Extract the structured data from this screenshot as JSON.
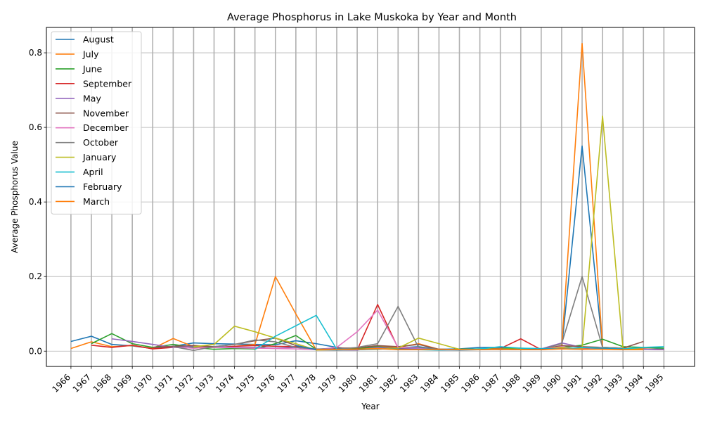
{
  "chart_data": {
    "type": "line",
    "title": "Average Phosphorus in Lake Muskoka by Year and Month",
    "xlabel": "Year",
    "ylabel": "Average Phosphorus Value",
    "xlim": [
      1964.8,
      1996.5
    ],
    "ylim": [
      -0.041,
      0.868
    ],
    "yticks": [
      0.0,
      0.2,
      0.4,
      0.6,
      0.8
    ],
    "xticks": [
      1966,
      1967,
      1968,
      1969,
      1970,
      1971,
      1972,
      1973,
      1974,
      1975,
      1976,
      1977,
      1978,
      1979,
      1980,
      1981,
      1982,
      1983,
      1984,
      1985,
      1986,
      1987,
      1988,
      1989,
      1990,
      1991,
      1992,
      1993,
      1994,
      1995
    ],
    "grid": true,
    "legend_position": "upper-left",
    "series": [
      {
        "name": "August",
        "color": "#1f77b4",
        "x": [
          1966,
          1967,
          1968,
          1969,
          1970,
          1971,
          1972,
          1973,
          1974,
          1975,
          1976,
          1977,
          1978,
          1979,
          1980,
          1981,
          1982,
          1983,
          1984,
          1985,
          1986,
          1987,
          1988,
          1989,
          1990,
          1991,
          1992,
          1993,
          1994,
          1995
        ],
        "y": [
          0.026,
          0.04,
          0.018,
          0.014,
          0.007,
          0.013,
          0.022,
          0.02,
          0.019,
          0.018,
          0.017,
          0.028,
          0.02,
          0.01,
          0.004,
          0.01,
          0.009,
          0.012,
          0.005,
          0.006,
          0.01,
          0.01,
          0.006,
          0.006,
          0.008,
          0.55,
          0.01,
          0.008,
          0.006,
          0.005
        ]
      },
      {
        "name": "July",
        "color": "#ff7f0e",
        "x": [
          1966,
          1967,
          1968,
          1969,
          1970,
          1971,
          1972,
          1973,
          1974,
          1975,
          1976,
          1977,
          1978,
          1979,
          1980,
          1981,
          1982,
          1983,
          1984,
          1985,
          1986,
          1987,
          1988,
          1989,
          1990,
          1991,
          1992,
          1993,
          1994,
          1995
        ],
        "y": [
          0.007,
          0.025,
          0.012,
          0.015,
          0.007,
          0.034,
          0.012,
          0.01,
          0.013,
          0.018,
          0.2,
          0.1,
          0.003,
          0.004,
          0.007,
          0.013,
          0.01,
          0.02,
          0.005,
          0.004,
          0.006,
          0.005,
          0.006,
          0.005,
          0.009,
          0.825,
          0.01,
          0.008,
          0.006,
          0.004
        ]
      },
      {
        "name": "June",
        "color": "#2ca02c",
        "x": [
          1967,
          1968,
          1969,
          1970,
          1971,
          1972,
          1973,
          1974,
          1975,
          1976,
          1977,
          1978,
          1979,
          1980,
          1981,
          1982,
          1983,
          1984,
          1985,
          1986,
          1987,
          1988,
          1989,
          1990,
          1991,
          1992,
          1993,
          1994,
          1995
        ],
        "y": [
          0.02,
          0.047,
          0.02,
          0.01,
          0.018,
          0.01,
          0.005,
          0.007,
          0.006,
          0.02,
          0.042,
          0.005,
          0.003,
          0.006,
          0.012,
          0.006,
          0.006,
          0.004,
          0.005,
          0.006,
          0.007,
          0.008,
          0.006,
          0.01,
          0.016,
          0.032,
          0.012,
          0.01,
          0.008
        ]
      },
      {
        "name": "September",
        "color": "#d62728",
        "x": [
          1967,
          1968,
          1969,
          1970,
          1971,
          1972,
          1973,
          1974,
          1975,
          1976,
          1977,
          1978,
          1979,
          1980,
          1981,
          1982,
          1983,
          1984,
          1985,
          1986,
          1987,
          1988,
          1989,
          1990,
          1991,
          1992,
          1993,
          1994,
          1995
        ],
        "y": [
          0.016,
          0.01,
          0.016,
          0.006,
          0.01,
          0.015,
          0.01,
          0.013,
          0.015,
          0.013,
          0.012,
          0.005,
          0.004,
          0.003,
          0.125,
          0.008,
          0.009,
          0.004,
          0.004,
          0.005,
          0.007,
          0.033,
          0.004,
          0.007,
          0.006,
          0.007,
          0.006,
          0.005,
          0.004
        ]
      },
      {
        "name": "May",
        "color": "#9467bd",
        "x": [
          1968,
          1969,
          1970,
          1971,
          1972,
          1973,
          1974,
          1975,
          1976,
          1977,
          1978,
          1979,
          1980,
          1981,
          1982,
          1983,
          1984,
          1985,
          1986,
          1987,
          1988,
          1989,
          1990,
          1991,
          1992,
          1993,
          1994,
          1995
        ],
        "y": [
          0.033,
          0.026,
          0.018,
          0.01,
          0.013,
          0.012,
          0.01,
          0.01,
          0.008,
          0.01,
          0.004,
          0.004,
          0.003,
          0.01,
          0.006,
          0.006,
          0.003,
          0.004,
          0.004,
          0.005,
          0.005,
          0.006,
          0.022,
          0.01,
          0.008,
          0.006,
          0.005,
          0.004
        ]
      },
      {
        "name": "November",
        "color": "#8c564b",
        "x": [
          1970,
          1971,
          1972,
          1973,
          1974,
          1975,
          1976,
          1977,
          1978,
          1979,
          1980,
          1981,
          1982,
          1983,
          1984,
          1985,
          1986,
          1987,
          1988,
          1989,
          1990,
          1991,
          1992,
          1993,
          1994
        ],
        "y": [
          0.01,
          0.013,
          0.015,
          0.012,
          0.018,
          0.028,
          0.035,
          0.015,
          0.005,
          0.008,
          0.009,
          0.015,
          0.012,
          0.018,
          0.005,
          0.004,
          0.005,
          0.005,
          0.004,
          0.005,
          0.015,
          0.012,
          0.01,
          0.008,
          0.026
        ]
      },
      {
        "name": "December",
        "color": "#e377c2",
        "x": [
          1971,
          1972,
          1973,
          1974,
          1975,
          1976,
          1977,
          1978,
          1979,
          1980,
          1981,
          1982,
          1983,
          1984,
          1985,
          1986,
          1987,
          1988,
          1989,
          1990,
          1991,
          1992,
          1993
        ],
        "y": [
          0.01,
          0.008,
          0.01,
          0.009,
          0.008,
          0.007,
          0.006,
          0.004,
          0.01,
          0.052,
          0.11,
          0.01,
          0.008,
          0.004,
          0.004,
          0.005,
          0.005,
          0.004,
          0.005,
          0.012,
          0.004,
          0.01,
          0.006
        ]
      },
      {
        "name": "October",
        "color": "#7f7f7f",
        "x": [
          1971,
          1972,
          1973,
          1974,
          1975,
          1976,
          1977,
          1978,
          1979,
          1980,
          1981,
          1982,
          1983,
          1984,
          1985,
          1986,
          1987,
          1988,
          1989,
          1990,
          1991,
          1992,
          1993
        ],
        "y": [
          0.012,
          0.002,
          0.012,
          0.018,
          0.03,
          0.025,
          0.01,
          0.006,
          0.005,
          0.01,
          0.02,
          0.12,
          0.01,
          0.005,
          0.004,
          0.005,
          0.004,
          0.005,
          0.005,
          0.02,
          0.2,
          0.01,
          0.008
        ]
      },
      {
        "name": "January",
        "color": "#bcbd22",
        "x": [
          1972,
          1973,
          1974,
          1975,
          1976,
          1977,
          1978,
          1979,
          1980,
          1981,
          1982,
          1983,
          1984,
          1985,
          1986,
          1987,
          1988,
          1989,
          1990,
          1991,
          1992,
          1993,
          1994
        ],
        "y": [
          0.012,
          0.018,
          0.067,
          0.052,
          0.035,
          0.02,
          0.003,
          0.004,
          0.004,
          0.005,
          0.008,
          0.035,
          0.02,
          0.005,
          0.005,
          0.006,
          0.005,
          0.004,
          0.01,
          0.006,
          0.63,
          0.006,
          0.005
        ]
      },
      {
        "name": "April",
        "color": "#17becf",
        "x": [
          1975,
          1976,
          1977,
          1978,
          1979,
          1980,
          1981,
          1982,
          1983,
          1984,
          1985,
          1986,
          1987,
          1988,
          1989,
          1990,
          1991,
          1992,
          1993,
          1994,
          1995
        ],
        "y": [
          0.005,
          0.04,
          0.068,
          0.096,
          0.005,
          0.004,
          0.006,
          0.005,
          0.004,
          0.003,
          0.004,
          0.006,
          0.012,
          0.008,
          0.007,
          0.006,
          0.01,
          0.008,
          0.006,
          0.01,
          0.012
        ]
      },
      {
        "name": "February",
        "color": "#1f77b4",
        "x": [
          1977,
          1978,
          1979,
          1980,
          1981,
          1982,
          1983,
          1984,
          1985,
          1986,
          1987,
          1988,
          1989,
          1990,
          1991,
          1992,
          1993
        ],
        "y": [
          0.015,
          0.004,
          0.003,
          0.004,
          0.006,
          0.005,
          0.005,
          0.004,
          0.003,
          0.004,
          0.005,
          0.004,
          0.005,
          0.006,
          0.005,
          0.006,
          0.005
        ]
      },
      {
        "name": "March",
        "color": "#ff7f0e",
        "x": [
          1978,
          1979,
          1980,
          1981,
          1982,
          1983,
          1984,
          1985,
          1986,
          1987,
          1988,
          1989,
          1990,
          1991,
          1992,
          1993,
          1994
        ],
        "y": [
          0.004,
          0.004,
          0.005,
          0.007,
          0.004,
          0.004,
          0.005,
          0.004,
          0.004,
          0.005,
          0.004,
          0.004,
          0.006,
          0.005,
          0.005,
          0.004,
          0.004
        ]
      }
    ]
  }
}
